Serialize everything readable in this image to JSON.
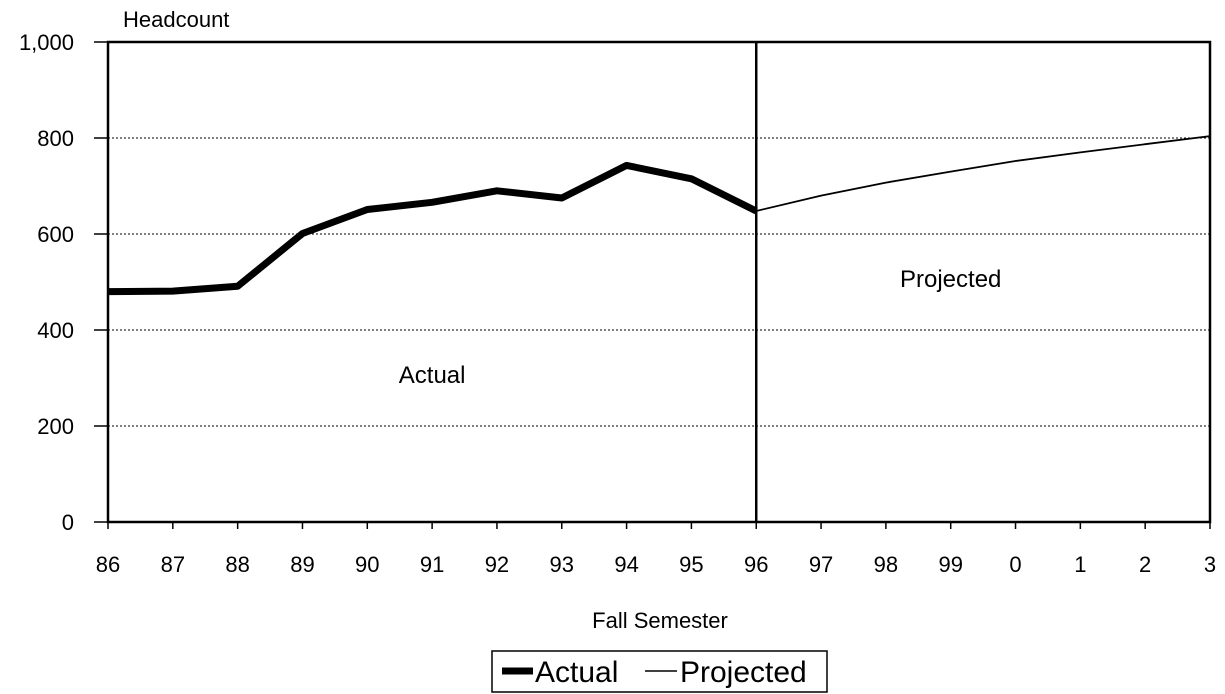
{
  "chart_data": {
    "type": "line",
    "ylabel": "Headcount",
    "xlabel": "Fall Semester",
    "ylim": [
      0,
      1000
    ],
    "yticks": [
      0,
      200,
      400,
      600,
      800,
      1000
    ],
    "ytick_labels": [
      "0",
      "200",
      "400",
      "600",
      "800",
      "1,000"
    ],
    "categories": [
      "86",
      "87",
      "88",
      "89",
      "90",
      "91",
      "92",
      "93",
      "94",
      "95",
      "96",
      "97",
      "98",
      "99",
      "0",
      "1",
      "2",
      "3"
    ],
    "grid": "horizontal dotted",
    "divider_at": "96",
    "series": [
      {
        "name": "Actual",
        "x": [
          "86",
          "87",
          "88",
          "89",
          "90",
          "91",
          "92",
          "93",
          "94",
          "95",
          "96"
        ],
        "values": [
          480,
          481,
          491,
          601,
          651,
          666,
          690,
          675,
          743,
          715,
          648
        ],
        "color": "#000000",
        "style": "thick"
      },
      {
        "name": "Projected",
        "x": [
          "96",
          "97",
          "98",
          "99",
          "0",
          "1",
          "2",
          "3"
        ],
        "values": [
          648,
          680,
          707,
          730,
          752,
          770,
          787,
          804
        ],
        "color": "#000000",
        "style": "thin"
      }
    ],
    "annotations": [
      {
        "text": "Actual",
        "x": "91",
        "y": 290
      },
      {
        "text": "Projected",
        "x": "99",
        "y": 490
      }
    ],
    "legend": {
      "position": "bottom-center",
      "items": [
        "Actual",
        "Projected"
      ]
    }
  }
}
